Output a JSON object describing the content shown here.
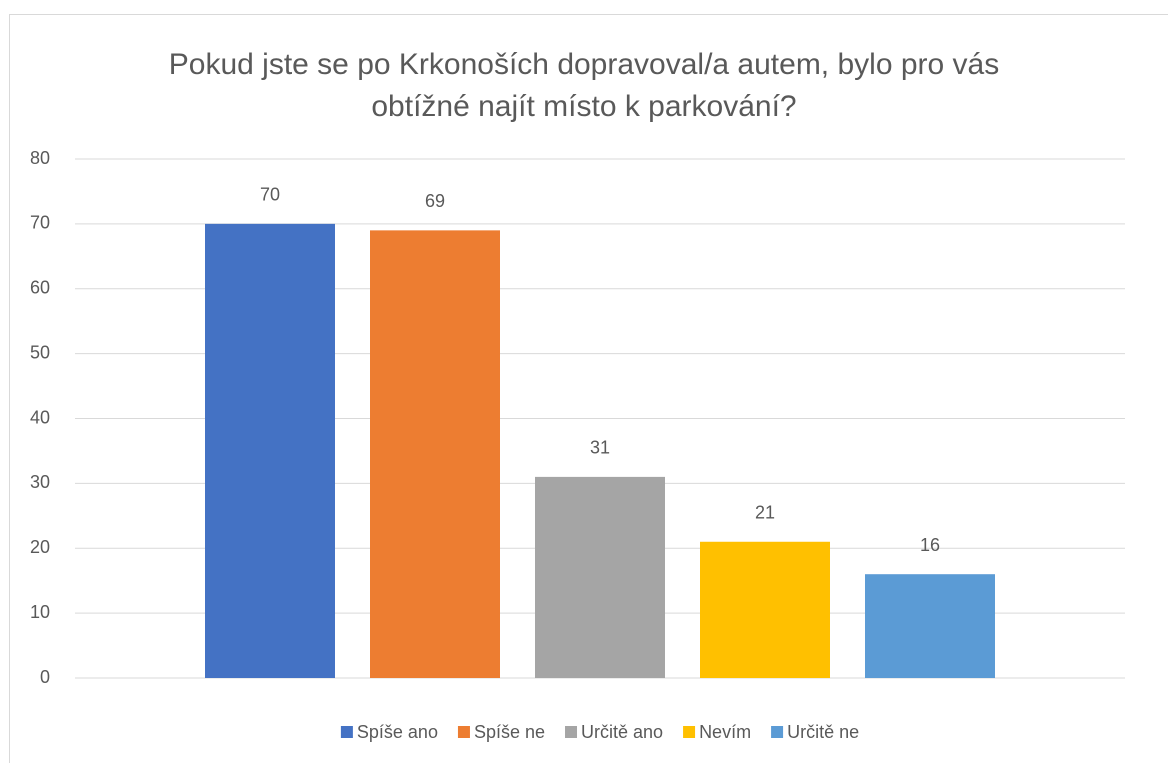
{
  "chart_data": {
    "type": "bar",
    "title": "Pokud jste se po Krkonoších dopravoval/a autem, bylo pro vás obtížné najít místo k parkování?",
    "categories": [
      null
    ],
    "series": [
      {
        "name": "Spíše ano",
        "color": "#4472c4",
        "values": [
          70
        ]
      },
      {
        "name": "Spíše ne",
        "color": "#ed7d31",
        "values": [
          69
        ]
      },
      {
        "name": "Určitě ano",
        "color": "#a5a5a5",
        "values": [
          31
        ]
      },
      {
        "name": "Nevím",
        "color": "#ffc000",
        "values": [
          21
        ]
      },
      {
        "name": "Určitě ne",
        "color": "#5b9bd5",
        "values": [
          16
        ]
      }
    ],
    "ylim": [
      0,
      80
    ],
    "yticks": [
      0,
      10,
      20,
      30,
      40,
      50,
      60,
      70,
      80
    ],
    "grid": true,
    "legend": "bottom",
    "data_labels": true
  }
}
